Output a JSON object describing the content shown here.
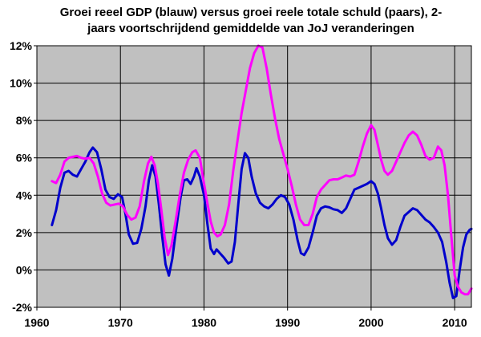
{
  "chart_data": {
    "type": "line",
    "title_lines": [
      "Groei reeel GDP (blauw) versus groei reele totale schuld (paars), 2-",
      "jaars voortschrijdend gemiddelde van JoJ veranderingen"
    ],
    "xlabel": "",
    "ylabel": "",
    "xlim": [
      1960,
      2012
    ],
    "ylim": [
      -2,
      12
    ],
    "x_ticks": [
      1960,
      1970,
      1980,
      1990,
      2000,
      2010
    ],
    "y_ticks": [
      -2,
      0,
      2,
      4,
      6,
      8,
      10,
      12
    ],
    "y_tick_suffix": "%",
    "grid": true,
    "legend": "none",
    "plot_background": "#c0c0c0",
    "series": [
      {
        "color": "#0000cc",
        "points": [
          [
            1961.8,
            2.4
          ],
          [
            1962.3,
            3.2
          ],
          [
            1962.8,
            4.4
          ],
          [
            1963.3,
            5.2
          ],
          [
            1963.8,
            5.3
          ],
          [
            1964.3,
            5.1
          ],
          [
            1964.8,
            5.0
          ],
          [
            1965.3,
            5.4
          ],
          [
            1965.8,
            5.8
          ],
          [
            1966.3,
            6.3
          ],
          [
            1966.7,
            6.55
          ],
          [
            1967.2,
            6.3
          ],
          [
            1967.7,
            5.4
          ],
          [
            1968.2,
            4.3
          ],
          [
            1968.7,
            3.9
          ],
          [
            1969.2,
            3.8
          ],
          [
            1969.7,
            4.05
          ],
          [
            1970.2,
            3.9
          ],
          [
            1970.6,
            3.0
          ],
          [
            1971.0,
            1.9
          ],
          [
            1971.5,
            1.4
          ],
          [
            1972.0,
            1.45
          ],
          [
            1972.5,
            2.2
          ],
          [
            1973.0,
            3.4
          ],
          [
            1973.4,
            4.8
          ],
          [
            1973.8,
            5.6
          ],
          [
            1974.2,
            5.0
          ],
          [
            1974.6,
            3.5
          ],
          [
            1975.0,
            1.8
          ],
          [
            1975.4,
            0.3
          ],
          [
            1975.8,
            -0.3
          ],
          [
            1976.2,
            0.6
          ],
          [
            1976.7,
            2.3
          ],
          [
            1977.2,
            3.9
          ],
          [
            1977.6,
            4.8
          ],
          [
            1978.0,
            4.85
          ],
          [
            1978.4,
            4.6
          ],
          [
            1978.8,
            5.0
          ],
          [
            1979.1,
            5.45
          ],
          [
            1979.5,
            5.0
          ],
          [
            1980.0,
            4.0
          ],
          [
            1980.4,
            2.5
          ],
          [
            1980.8,
            1.15
          ],
          [
            1981.2,
            0.85
          ],
          [
            1981.5,
            1.1
          ],
          [
            1981.9,
            0.9
          ],
          [
            1982.4,
            0.65
          ],
          [
            1982.9,
            0.35
          ],
          [
            1983.3,
            0.45
          ],
          [
            1983.7,
            1.5
          ],
          [
            1984.1,
            3.5
          ],
          [
            1984.5,
            5.4
          ],
          [
            1984.9,
            6.25
          ],
          [
            1985.3,
            6.0
          ],
          [
            1985.7,
            5.0
          ],
          [
            1986.2,
            4.1
          ],
          [
            1986.7,
            3.6
          ],
          [
            1987.2,
            3.4
          ],
          [
            1987.7,
            3.3
          ],
          [
            1988.2,
            3.5
          ],
          [
            1988.7,
            3.8
          ],
          [
            1989.2,
            4.0
          ],
          [
            1989.7,
            3.9
          ],
          [
            1990.2,
            3.5
          ],
          [
            1990.7,
            2.7
          ],
          [
            1991.2,
            1.6
          ],
          [
            1991.6,
            0.9
          ],
          [
            1992.0,
            0.8
          ],
          [
            1992.5,
            1.2
          ],
          [
            1993.0,
            2.0
          ],
          [
            1993.5,
            2.9
          ],
          [
            1994.0,
            3.3
          ],
          [
            1994.5,
            3.4
          ],
          [
            1995.0,
            3.35
          ],
          [
            1995.5,
            3.25
          ],
          [
            1996.0,
            3.2
          ],
          [
            1996.5,
            3.05
          ],
          [
            1997.0,
            3.3
          ],
          [
            1997.5,
            3.8
          ],
          [
            1998.0,
            4.3
          ],
          [
            1998.5,
            4.4
          ],
          [
            1999.0,
            4.5
          ],
          [
            1999.5,
            4.6
          ],
          [
            2000.0,
            4.75
          ],
          [
            2000.4,
            4.6
          ],
          [
            2000.8,
            4.1
          ],
          [
            2001.2,
            3.3
          ],
          [
            2001.6,
            2.4
          ],
          [
            2002.0,
            1.7
          ],
          [
            2002.5,
            1.35
          ],
          [
            2003.0,
            1.6
          ],
          [
            2003.5,
            2.3
          ],
          [
            2004.0,
            2.9
          ],
          [
            2004.5,
            3.1
          ],
          [
            2005.0,
            3.3
          ],
          [
            2005.5,
            3.2
          ],
          [
            2006.0,
            2.95
          ],
          [
            2006.5,
            2.7
          ],
          [
            2007.0,
            2.55
          ],
          [
            2007.5,
            2.3
          ],
          [
            2008.0,
            2.0
          ],
          [
            2008.5,
            1.5
          ],
          [
            2009.0,
            0.4
          ],
          [
            2009.4,
            -0.7
          ],
          [
            2009.8,
            -1.5
          ],
          [
            2010.2,
            -1.4
          ],
          [
            2010.6,
            0.0
          ],
          [
            2011.0,
            1.2
          ],
          [
            2011.4,
            1.9
          ],
          [
            2011.8,
            2.15
          ],
          [
            2012.0,
            2.2
          ]
        ]
      },
      {
        "color": "#ff00ff",
        "points": [
          [
            1961.8,
            4.75
          ],
          [
            1962.3,
            4.65
          ],
          [
            1962.8,
            5.1
          ],
          [
            1963.3,
            5.8
          ],
          [
            1963.8,
            6.0
          ],
          [
            1964.3,
            6.05
          ],
          [
            1964.8,
            6.1
          ],
          [
            1965.3,
            6.0
          ],
          [
            1965.8,
            5.95
          ],
          [
            1966.3,
            6.0
          ],
          [
            1966.8,
            5.7
          ],
          [
            1967.3,
            5.0
          ],
          [
            1967.8,
            4.1
          ],
          [
            1968.3,
            3.6
          ],
          [
            1968.8,
            3.45
          ],
          [
            1969.3,
            3.5
          ],
          [
            1969.8,
            3.55
          ],
          [
            1970.3,
            3.4
          ],
          [
            1970.8,
            2.95
          ],
          [
            1971.3,
            2.7
          ],
          [
            1971.8,
            2.8
          ],
          [
            1972.3,
            3.4
          ],
          [
            1972.8,
            4.7
          ],
          [
            1973.3,
            5.7
          ],
          [
            1973.7,
            6.05
          ],
          [
            1974.1,
            5.6
          ],
          [
            1974.5,
            4.6
          ],
          [
            1974.9,
            3.2
          ],
          [
            1975.3,
            1.7
          ],
          [
            1975.7,
            0.8
          ],
          [
            1976.1,
            1.3
          ],
          [
            1976.6,
            2.6
          ],
          [
            1977.1,
            4.0
          ],
          [
            1977.6,
            5.2
          ],
          [
            1978.1,
            5.9
          ],
          [
            1978.6,
            6.3
          ],
          [
            1979.0,
            6.4
          ],
          [
            1979.5,
            6.0
          ],
          [
            1979.9,
            4.9
          ],
          [
            1980.4,
            3.6
          ],
          [
            1980.8,
            2.6
          ],
          [
            1981.2,
            2.0
          ],
          [
            1981.6,
            1.8
          ],
          [
            1982.0,
            1.9
          ],
          [
            1982.5,
            2.4
          ],
          [
            1983.0,
            3.5
          ],
          [
            1983.5,
            5.3
          ],
          [
            1984.0,
            6.9
          ],
          [
            1984.5,
            8.4
          ],
          [
            1985.0,
            9.6
          ],
          [
            1985.5,
            10.8
          ],
          [
            1986.0,
            11.6
          ],
          [
            1986.5,
            12.0
          ],
          [
            1987.0,
            11.9
          ],
          [
            1987.5,
            10.8
          ],
          [
            1988.0,
            9.4
          ],
          [
            1988.5,
            8.1
          ],
          [
            1989.0,
            7.0
          ],
          [
            1989.5,
            6.2
          ],
          [
            1990.0,
            5.4
          ],
          [
            1990.5,
            4.5
          ],
          [
            1991.0,
            3.5
          ],
          [
            1991.5,
            2.7
          ],
          [
            1992.0,
            2.4
          ],
          [
            1992.5,
            2.4
          ],
          [
            1993.0,
            3.0
          ],
          [
            1993.5,
            3.9
          ],
          [
            1994.0,
            4.3
          ],
          [
            1994.5,
            4.55
          ],
          [
            1995.0,
            4.8
          ],
          [
            1995.5,
            4.85
          ],
          [
            1996.0,
            4.85
          ],
          [
            1996.5,
            4.95
          ],
          [
            1997.0,
            5.05
          ],
          [
            1997.5,
            5.0
          ],
          [
            1998.0,
            5.1
          ],
          [
            1998.5,
            5.8
          ],
          [
            1999.0,
            6.6
          ],
          [
            1999.5,
            7.3
          ],
          [
            2000.0,
            7.75
          ],
          [
            2000.4,
            7.5
          ],
          [
            2000.8,
            6.7
          ],
          [
            2001.2,
            5.9
          ],
          [
            2001.6,
            5.3
          ],
          [
            2002.0,
            5.1
          ],
          [
            2002.5,
            5.3
          ],
          [
            2003.0,
            5.8
          ],
          [
            2003.5,
            6.3
          ],
          [
            2004.0,
            6.8
          ],
          [
            2004.5,
            7.2
          ],
          [
            2005.0,
            7.4
          ],
          [
            2005.5,
            7.2
          ],
          [
            2006.0,
            6.7
          ],
          [
            2006.5,
            6.1
          ],
          [
            2007.0,
            5.9
          ],
          [
            2007.5,
            6.0
          ],
          [
            2008.0,
            6.6
          ],
          [
            2008.4,
            6.4
          ],
          [
            2008.8,
            5.6
          ],
          [
            2009.2,
            4.0
          ],
          [
            2009.6,
            1.8
          ],
          [
            2010.0,
            -0.3
          ],
          [
            2010.4,
            -0.9
          ],
          [
            2010.8,
            -1.2
          ],
          [
            2011.2,
            -1.3
          ],
          [
            2011.6,
            -1.3
          ],
          [
            2012.0,
            -1.0
          ]
        ]
      }
    ]
  }
}
